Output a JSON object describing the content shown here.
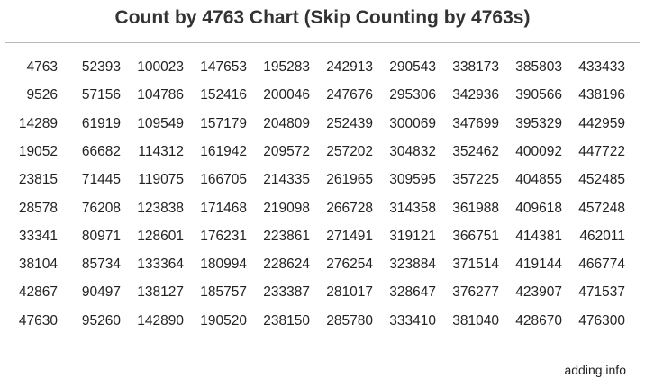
{
  "chart_data": {
    "type": "table",
    "title": "Count by 4763 Chart (Skip Counting by 4763s)",
    "rows": [
      [
        "4763",
        "52393",
        "100023",
        "147653",
        "195283",
        "242913",
        "290543",
        "338173",
        "385803",
        "433433"
      ],
      [
        "9526",
        "57156",
        "104786",
        "152416",
        "200046",
        "247676",
        "295306",
        "342936",
        "390566",
        "438196"
      ],
      [
        "14289",
        "61919",
        "109549",
        "157179",
        "204809",
        "252439",
        "300069",
        "347699",
        "395329",
        "442959"
      ],
      [
        "19052",
        "66682",
        "114312",
        "161942",
        "209572",
        "257202",
        "304832",
        "352462",
        "400092",
        "447722"
      ],
      [
        "23815",
        "71445",
        "119075",
        "166705",
        "214335",
        "261965",
        "309595",
        "357225",
        "404855",
        "452485"
      ],
      [
        "28578",
        "76208",
        "123838",
        "171468",
        "219098",
        "266728",
        "314358",
        "361988",
        "409618",
        "457248"
      ],
      [
        "33341",
        "80971",
        "128601",
        "176231",
        "223861",
        "271491",
        "319121",
        "366751",
        "414381",
        "462011"
      ],
      [
        "38104",
        "85734",
        "133364",
        "180994",
        "228624",
        "276254",
        "323884",
        "371514",
        "419144",
        "466774"
      ],
      [
        "42867",
        "90497",
        "138127",
        "185757",
        "233387",
        "281017",
        "328647",
        "376277",
        "423907",
        "471537"
      ],
      [
        "47630",
        "95260",
        "142890",
        "190520",
        "238150",
        "285780",
        "333410",
        "381040",
        "428670",
        "476300"
      ]
    ]
  },
  "footer": "adding.info"
}
